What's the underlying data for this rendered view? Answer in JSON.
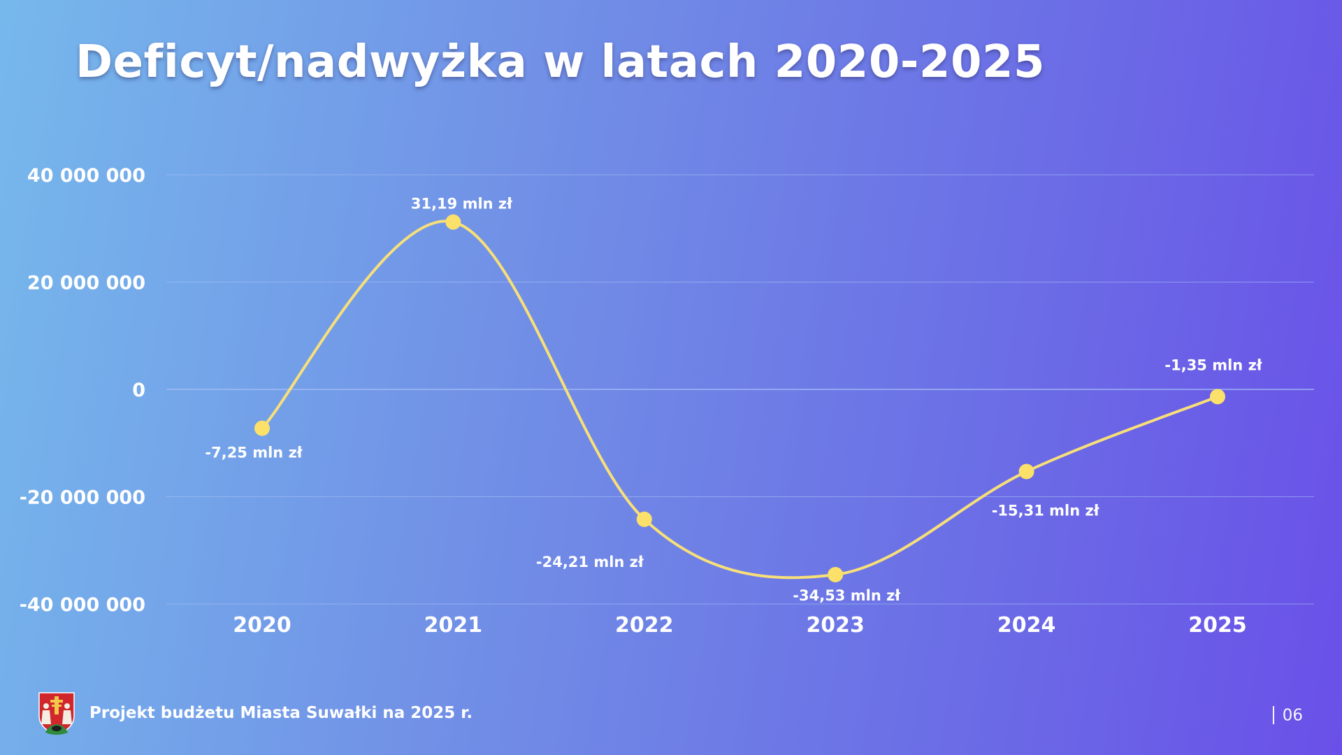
{
  "slide": {
    "title": "Deficyt/nadwyżka w latach 2020-2025",
    "footer_text": "Projekt budżetu Miasta Suwałki na 2025 r.",
    "page_number": "06"
  },
  "colors": {
    "line": "#f7df79",
    "marker": "#fbe06a",
    "gridline": "#a9c1f4",
    "text": "#ffffff"
  },
  "chart_data": {
    "type": "line",
    "title": "Deficyt/nadwyżka w latach 2020-2025",
    "categories": [
      "2020",
      "2021",
      "2022",
      "2023",
      "2024",
      "2025"
    ],
    "series": [
      {
        "values": [
          -7250000,
          31190000,
          -24210000,
          -34530000,
          -15310000,
          -1350000
        ],
        "data_labels": [
          "-7,25 mln zł",
          "31,19 mln zł",
          "-24,21 mln zł",
          "-34,53 mln zł",
          "-15,31 mln zł",
          "-1,35 mln zł"
        ]
      }
    ],
    "ylim": [
      -40000000,
      40000000
    ],
    "yticks": [
      40000000,
      20000000,
      0,
      -20000000,
      -40000000
    ],
    "ytick_labels": [
      "40 000 000",
      "20 000 000",
      "0",
      "-20 000 000",
      "-40 000 000"
    ],
    "smooth": true,
    "grid": true,
    "legend": false
  },
  "crest": {
    "icon": "city-crest-icon"
  }
}
